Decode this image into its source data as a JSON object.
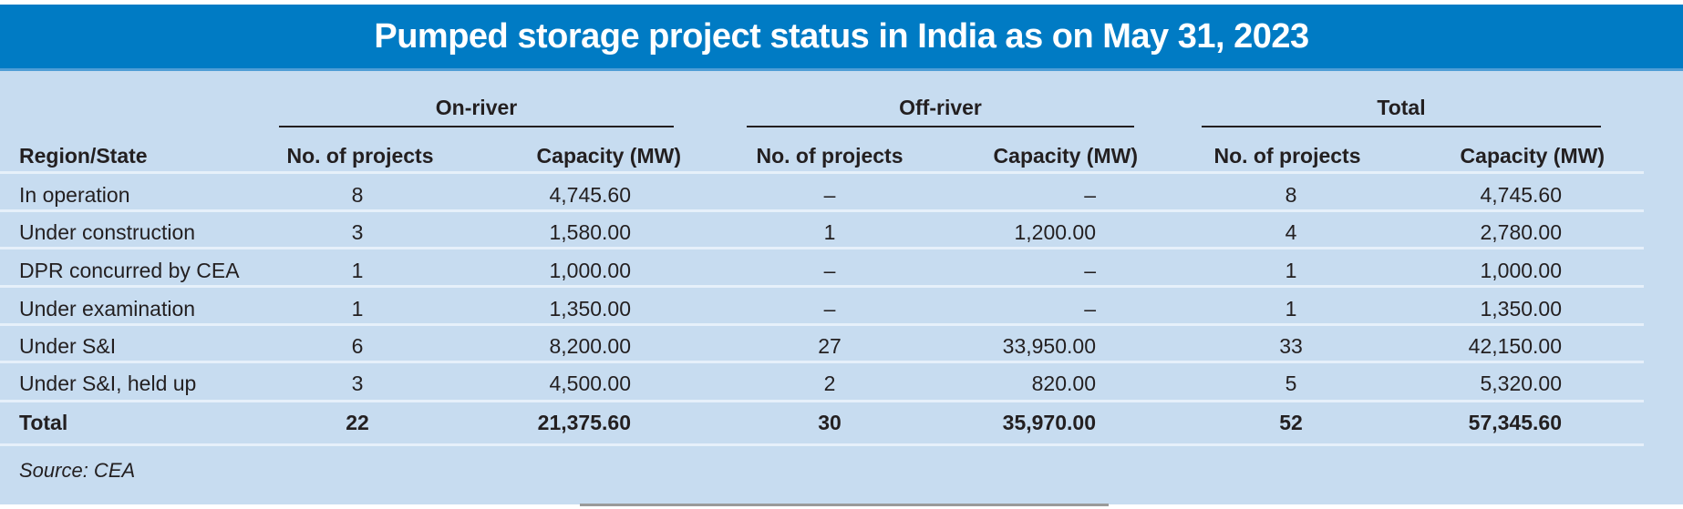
{
  "title": "Pumped storage project status in India as on May 31, 2023",
  "colors": {
    "banner": "#007bc4",
    "panel": "#c7dcf0",
    "text": "#231f20"
  },
  "group_headers": [
    "On-river",
    "Off-river",
    "Total"
  ],
  "column_headers": [
    "Region/State",
    "No. of projects",
    "Capacity (MW)",
    "No. of projects",
    "Capacity (MW)",
    "No. of projects",
    "Capacity (MW)"
  ],
  "rows": [
    [
      "In operation",
      "8",
      "4,745.60",
      "–",
      "–",
      "8",
      "4,745.60"
    ],
    [
      "Under construction",
      "3",
      "1,580.00",
      "1",
      "1,200.00",
      "4",
      "2,780.00"
    ],
    [
      "DPR concurred by CEA",
      "1",
      "1,000.00",
      "–",
      "–",
      "1",
      "1,000.00"
    ],
    [
      "Under examination",
      "1",
      "1,350.00",
      "–",
      "–",
      "1",
      "1,350.00"
    ],
    [
      "Under S&I",
      "6",
      "8,200.00",
      "27",
      "33,950.00",
      "33",
      "42,150.00"
    ],
    [
      "Under S&I, held up",
      "3",
      "4,500.00",
      "2",
      "820.00",
      "5",
      "5,320.00"
    ]
  ],
  "total_row": [
    "Total",
    "22",
    "21,375.60",
    "30",
    "35,970.00",
    "52",
    "57,345.60"
  ],
  "source": "Source: CEA"
}
